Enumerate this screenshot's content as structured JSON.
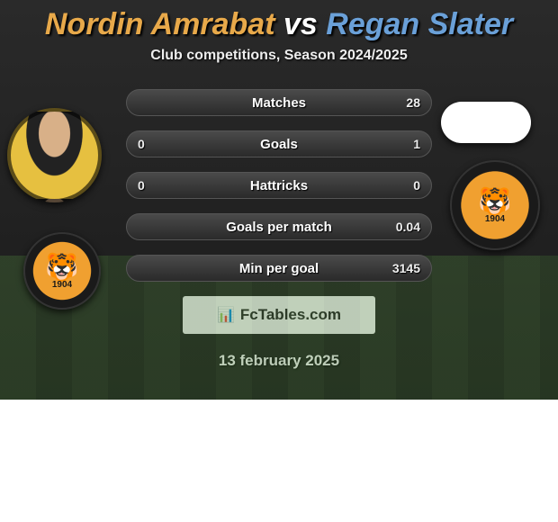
{
  "header": {
    "player1": "Nordin Amrabat",
    "vs": "vs",
    "player2": "Regan Slater",
    "subtitle": "Club competitions, Season 2024/2025"
  },
  "stats": {
    "rows": [
      {
        "label": "Matches",
        "left": "",
        "right": "28"
      },
      {
        "label": "Goals",
        "left": "0",
        "right": "1"
      },
      {
        "label": "Hattricks",
        "left": "0",
        "right": "0"
      },
      {
        "label": "Goals per match",
        "left": "",
        "right": "0.04"
      },
      {
        "label": "Min per goal",
        "left": "",
        "right": "3145"
      }
    ],
    "pill_bg": "#3a3a3a",
    "pill_border": "#555555",
    "label_color": "#ffffff",
    "value_color": "#eeeeee"
  },
  "club_badge": {
    "year": "1904",
    "bg": "#f0a030"
  },
  "branding": {
    "site": "FcTables.com",
    "icon": "📊"
  },
  "date": "13 february 2025",
  "palette": {
    "title_p1": "#e8a94a",
    "title_p2": "#6aa0d8",
    "grass_a": "#4a7a3a",
    "grass_b": "#3d6830",
    "bg": "#1a1a1a"
  }
}
